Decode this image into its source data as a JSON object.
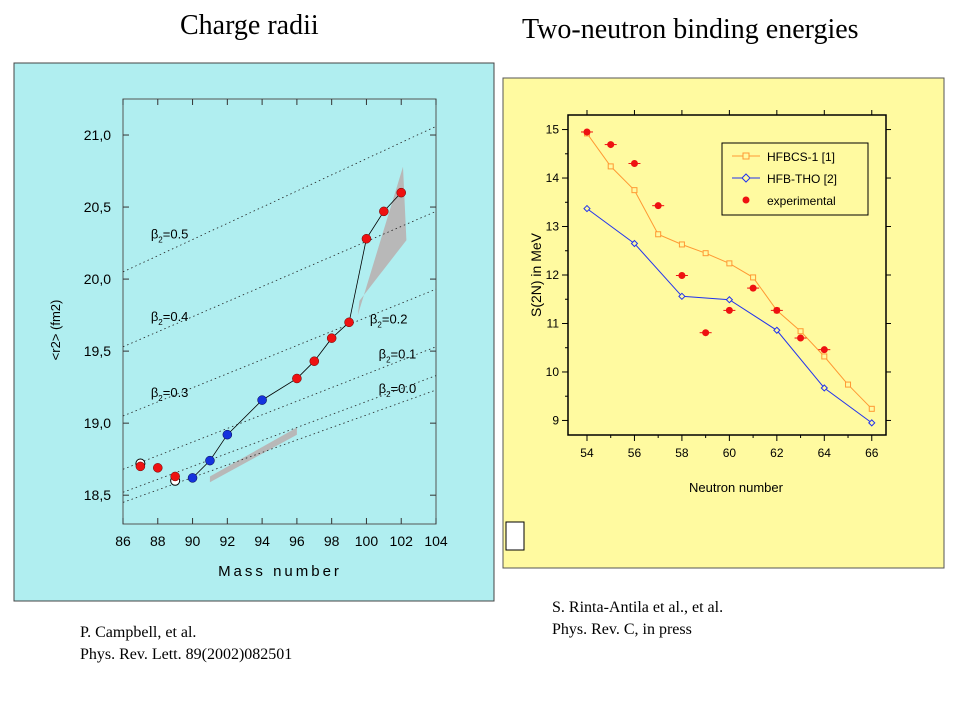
{
  "titles": {
    "left": "Charge radii",
    "right": "Two-neutron binding energies"
  },
  "references": {
    "left_line1": "P. Campbell, et al.",
    "left_line2": "Phys. Rev. Lett. 89(2002)082501",
    "right_line1": "S. Rinta-Antila et al., et al.",
    "right_line2": "Phys. Rev. C, in press"
  },
  "colors": {
    "left_panel_bg": "#b0eef0",
    "right_panel_bg": "#fffaa0",
    "red_marker": "#ee1111",
    "blue_marker": "#1533dd",
    "hfbcs_line": "#ff9933",
    "hfbtho_line": "#2233ee",
    "band_gray": "#b8b8b8"
  },
  "chart_data": [
    {
      "type": "scatter",
      "xlabel": "Mass number",
      "ylabel": "<r2> (fm2)",
      "xlim": [
        86,
        104
      ],
      "ylim": [
        18.3,
        21.25
      ],
      "x_ticks": [
        "86",
        "88",
        "90",
        "92",
        "94",
        "96",
        "98",
        "100",
        "102",
        "104"
      ],
      "y_ticks": [
        "18,5",
        "19,0",
        "19,5",
        "20,0",
        "20,5",
        "21,0"
      ],
      "red_points": [
        {
          "x": 87,
          "y": 18.7
        },
        {
          "x": 88,
          "y": 18.69
        },
        {
          "x": 89,
          "y": 18.63
        },
        {
          "x": 96,
          "y": 19.31
        },
        {
          "x": 97,
          "y": 19.43
        },
        {
          "x": 98,
          "y": 19.59
        },
        {
          "x": 99,
          "y": 19.7
        },
        {
          "x": 100,
          "y": 20.28
        },
        {
          "x": 101,
          "y": 20.47
        },
        {
          "x": 102,
          "y": 20.6
        }
      ],
      "blue_points": [
        {
          "x": 90,
          "y": 18.62
        },
        {
          "x": 91,
          "y": 18.74
        },
        {
          "x": 92,
          "y": 18.92
        },
        {
          "x": 94,
          "y": 19.16
        }
      ],
      "open_points": [
        {
          "x": 87,
          "y": 18.72
        },
        {
          "x": 89,
          "y": 18.6
        }
      ],
      "connected_line": [
        {
          "x": 90,
          "y": 18.62
        },
        {
          "x": 91,
          "y": 18.74
        },
        {
          "x": 92,
          "y": 18.92
        },
        {
          "x": 94,
          "y": 19.16
        },
        {
          "x": 96,
          "y": 19.31
        },
        {
          "x": 97,
          "y": 19.43
        },
        {
          "x": 98,
          "y": 19.59
        },
        {
          "x": 99,
          "y": 19.7
        },
        {
          "x": 100,
          "y": 20.28
        },
        {
          "x": 101,
          "y": 20.47
        },
        {
          "x": 102,
          "y": 20.6
        }
      ],
      "beta_lines": [
        {
          "label": "β2=0.5",
          "start": {
            "x": 86,
            "y": 20.05
          },
          "end": {
            "x": 104,
            "y": 21.06
          }
        },
        {
          "label": "β2=0.4",
          "start": {
            "x": 86,
            "y": 19.53
          },
          "end": {
            "x": 104,
            "y": 20.47
          }
        },
        {
          "label": "β2=0.3",
          "start": {
            "x": 86,
            "y": 19.05
          },
          "end": {
            "x": 104,
            "y": 19.93
          }
        },
        {
          "label": "β2=0.2",
          "start": {
            "x": 86,
            "y": 18.68
          },
          "end": {
            "x": 104,
            "y": 19.53
          }
        },
        {
          "label": "β2=0.1",
          "start": {
            "x": 86,
            "y": 18.52
          },
          "end": {
            "x": 104,
            "y": 19.33
          }
        },
        {
          "label": "β2=0.0",
          "start": {
            "x": 86,
            "y": 18.45
          },
          "end": {
            "x": 104,
            "y": 19.23
          }
        }
      ],
      "beta_labels": [
        {
          "text": "β2=0.5",
          "x": 87.6,
          "y": 20.28
        },
        {
          "text": "β2=0.4",
          "x": 87.6,
          "y": 19.71
        },
        {
          "text": "β2=0.3",
          "x": 87.6,
          "y": 19.18
        },
        {
          "text": "β2=0.2",
          "x": 100.2,
          "y": 19.69
        },
        {
          "text": "β2=0.1",
          "x": 100.7,
          "y": 19.45
        },
        {
          "text": "β2=0.0",
          "x": 100.7,
          "y": 19.21
        }
      ],
      "bands": [
        {
          "points": [
            {
              "x": 91,
              "y": 18.63
            },
            {
              "x": 96,
              "y": 18.97
            },
            {
              "x": 96,
              "y": 18.92
            },
            {
              "x": 91,
              "y": 18.59
            }
          ]
        },
        {
          "points": [
            {
              "x": 99.5,
              "y": 19.75
            },
            {
              "x": 102.1,
              "y": 20.78
            },
            {
              "x": 102.3,
              "y": 20.27
            },
            {
              "x": 99.6,
              "y": 19.85
            }
          ]
        }
      ]
    },
    {
      "type": "line",
      "xlabel": "Neutron number",
      "ylabel": "S(2N) in MeV",
      "xlim": [
        53.2,
        66.6
      ],
      "ylim": [
        8.7,
        15.3
      ],
      "x_ticks": [
        "54",
        "56",
        "58",
        "60",
        "62",
        "64",
        "66"
      ],
      "y_ticks": [
        "9",
        "10",
        "11",
        "12",
        "13",
        "14",
        "15"
      ],
      "legend_position": "top-right",
      "series": [
        {
          "name": "HFBCS-1 [1]",
          "x": [
            54,
            55,
            56,
            57,
            58,
            59,
            60,
            61,
            62,
            63,
            64,
            65,
            66
          ],
          "values": [
            14.92,
            14.24,
            13.75,
            12.84,
            12.63,
            12.45,
            12.24,
            11.95,
            11.27,
            10.84,
            10.32,
            9.74,
            9.24
          ]
        },
        {
          "name": "HFB-THO [2]",
          "x": [
            54,
            56,
            58,
            60,
            62,
            64,
            66
          ],
          "values": [
            13.37,
            12.65,
            11.56,
            11.49,
            10.86,
            9.67,
            8.95
          ]
        },
        {
          "name": "experimental",
          "x": [
            54,
            55,
            56,
            57,
            58,
            59,
            60,
            61,
            62,
            63,
            64
          ],
          "values": [
            14.95,
            14.69,
            14.3,
            13.43,
            11.99,
            10.81,
            11.27,
            11.73,
            11.27,
            10.7,
            10.46
          ]
        }
      ]
    }
  ]
}
